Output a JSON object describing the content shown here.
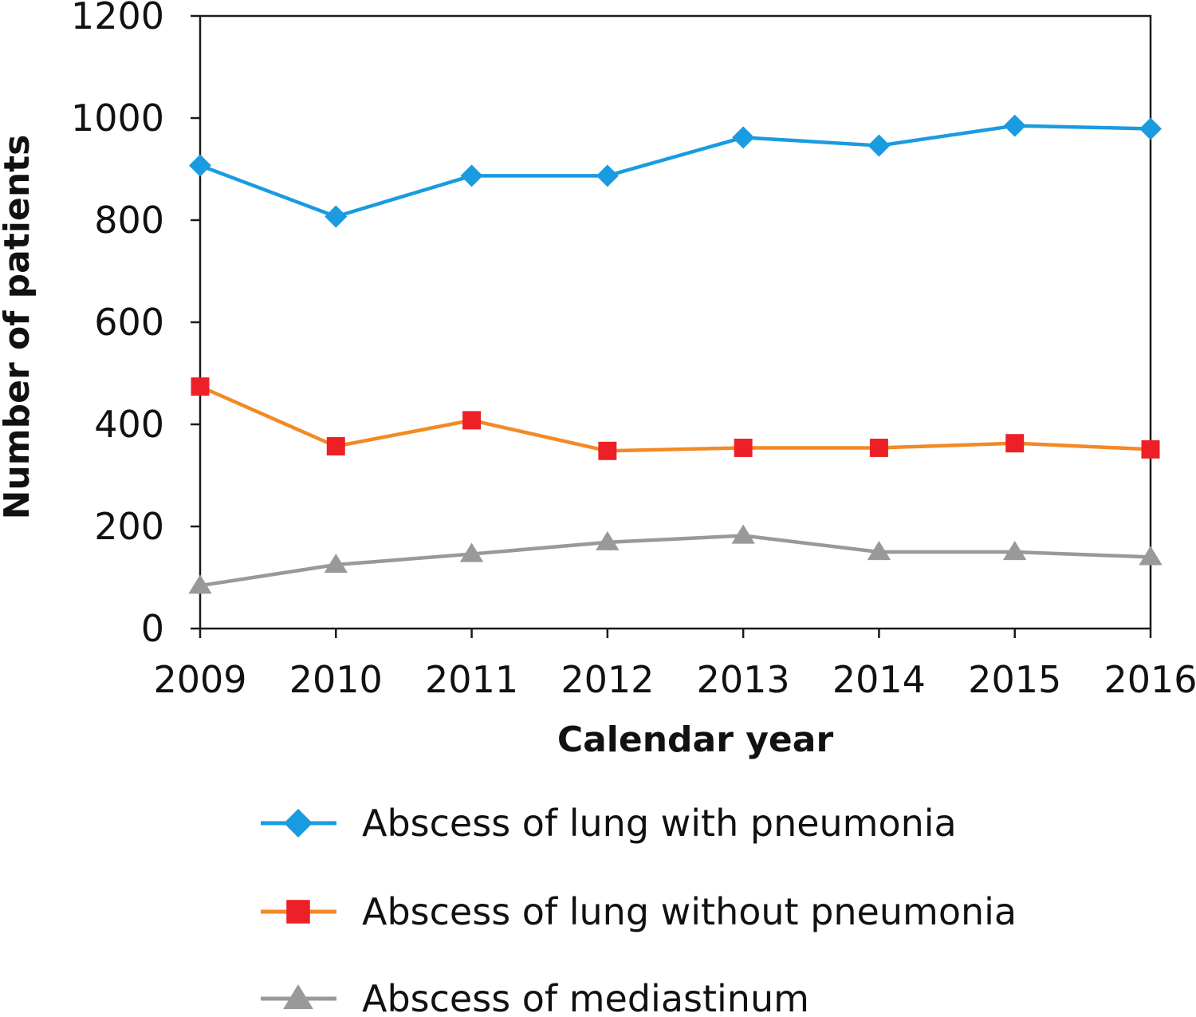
{
  "chart_data": {
    "type": "line",
    "title": "",
    "xlabel": "Calendar year",
    "ylabel": "Number of patients",
    "x": [
      "2009",
      "2010",
      "2011",
      "2012",
      "2013",
      "2014",
      "2015",
      "2016"
    ],
    "ylim": [
      0,
      1200
    ],
    "yticks": [
      "0",
      "200",
      "400",
      "600",
      "800",
      "1000",
      "1200"
    ],
    "grid": false,
    "legend_position": "bottom",
    "series": [
      {
        "name": "Abscess of lung with pneumonia",
        "values": [
          907,
          807,
          887,
          887,
          962,
          946,
          985,
          979
        ],
        "color": "#1a9be0",
        "marker": "diamond",
        "marker_color": "#1a9be0"
      },
      {
        "name": "Abscess of lung without pneumonia",
        "values": [
          474,
          357,
          408,
          348,
          354,
          354,
          363,
          351
        ],
        "color": "#f28a25",
        "marker": "square",
        "marker_color": "#ec2026"
      },
      {
        "name": "Abscess of mediastinum",
        "values": [
          84,
          125,
          146,
          169,
          182,
          150,
          150,
          140
        ],
        "color": "#999999",
        "marker": "triangle",
        "marker_color": "#999999"
      }
    ]
  }
}
